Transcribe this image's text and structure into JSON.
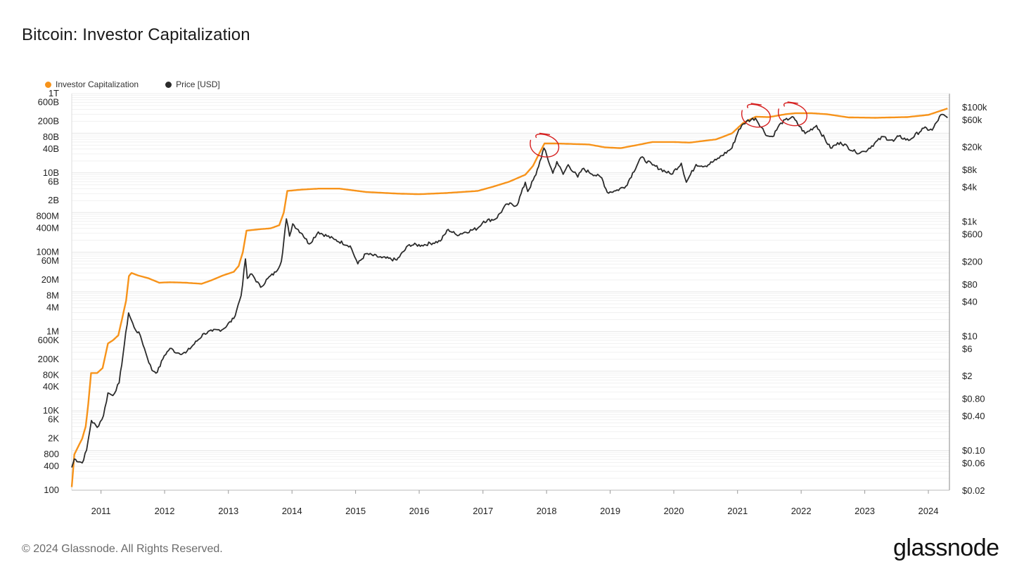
{
  "page": {
    "title": "Bitcoin: Investor Capitalization",
    "copyright": "© 2024 Glassnode. All Rights Reserved.",
    "logo": "glassnode"
  },
  "legend": [
    {
      "label": "Investor Capitalization",
      "color": "#f7931a"
    },
    {
      "label": "Price [USD]",
      "color": "#2b2b2b"
    }
  ],
  "chart_data": {
    "type": "line",
    "title": "Bitcoin: Investor Capitalization",
    "x_ticks": [
      "2011",
      "2012",
      "2013",
      "2014",
      "2015",
      "2016",
      "2017",
      "2018",
      "2019",
      "2020",
      "2021",
      "2022",
      "2023",
      "2024"
    ],
    "xlim": [
      "2010-07-17",
      "2024-05-01"
    ],
    "left_axis": {
      "scale": "log",
      "ylim": [
        100,
        1000000000000
      ],
      "ticks": [
        {
          "label": "1T",
          "value": 1000000000000.0
        },
        {
          "label": "600B",
          "value": 600000000000.0
        },
        {
          "label": "200B",
          "value": 200000000000.0
        },
        {
          "label": "80B",
          "value": 80000000000.0
        },
        {
          "label": "40B",
          "value": 40000000000.0
        },
        {
          "label": "10B",
          "value": 10000000000.0
        },
        {
          "label": "6B",
          "value": 6000000000.0
        },
        {
          "label": "2B",
          "value": 2000000000.0
        },
        {
          "label": "800M",
          "value": 800000000.0
        },
        {
          "label": "400M",
          "value": 400000000.0
        },
        {
          "label": "100M",
          "value": 100000000.0
        },
        {
          "label": "60M",
          "value": 60000000.0
        },
        {
          "label": "20M",
          "value": 20000000.0
        },
        {
          "label": "8M",
          "value": 8000000.0
        },
        {
          "label": "4M",
          "value": 4000000.0
        },
        {
          "label": "1M",
          "value": 1000000.0
        },
        {
          "label": "600K",
          "value": 600000.0
        },
        {
          "label": "200K",
          "value": 200000.0
        },
        {
          "label": "80K",
          "value": 80000.0
        },
        {
          "label": "40K",
          "value": 40000.0
        },
        {
          "label": "10K",
          "value": 10000.0
        },
        {
          "label": "6K",
          "value": 6000.0
        },
        {
          "label": "2K",
          "value": 2000.0
        },
        {
          "label": "800",
          "value": 800
        },
        {
          "label": "400",
          "value": 400
        },
        {
          "label": "100",
          "value": 100
        }
      ]
    },
    "right_axis": {
      "scale": "log",
      "ylim": [
        0.02,
        170000
      ],
      "ticks": [
        {
          "label": "$100k",
          "value": 100000
        },
        {
          "label": "$60k",
          "value": 60000
        },
        {
          "label": "$20k",
          "value": 20000
        },
        {
          "label": "$8k",
          "value": 8000
        },
        {
          "label": "$4k",
          "value": 4000
        },
        {
          "label": "$1k",
          "value": 1000
        },
        {
          "label": "$600",
          "value": 600
        },
        {
          "label": "$200",
          "value": 200
        },
        {
          "label": "$80",
          "value": 80
        },
        {
          "label": "$40",
          "value": 40
        },
        {
          "label": "$10",
          "value": 10
        },
        {
          "label": "$6",
          "value": 6
        },
        {
          "label": "$2",
          "value": 2
        },
        {
          "label": "$0.80",
          "value": 0.8
        },
        {
          "label": "$0.40",
          "value": 0.4
        },
        {
          "label": "$0.10",
          "value": 0.1
        },
        {
          "label": "$0.06",
          "value": 0.06
        },
        {
          "label": "$0.02",
          "value": 0.02
        }
      ]
    },
    "grid": true,
    "legend_position": "top-left",
    "series": [
      {
        "name": "Investor Capitalization",
        "axis": "left",
        "color": "#f7931a",
        "points": [
          [
            "2010-07-17",
            120
          ],
          [
            "2010-08-01",
            800
          ],
          [
            "2010-09-15",
            2000
          ],
          [
            "2010-10-05",
            4000
          ],
          [
            "2010-10-20",
            15000
          ],
          [
            "2010-11-05",
            90000
          ],
          [
            "2010-12-10",
            90000
          ],
          [
            "2011-01-10",
            120000
          ],
          [
            "2011-02-10",
            500000
          ],
          [
            "2011-03-10",
            600000
          ],
          [
            "2011-04-10",
            800000
          ],
          [
            "2011-05-01",
            2000000
          ],
          [
            "2011-05-25",
            6000000
          ],
          [
            "2011-06-10",
            25000000
          ],
          [
            "2011-06-25",
            30000000
          ],
          [
            "2011-08-01",
            26000000
          ],
          [
            "2011-10-01",
            22000000
          ],
          [
            "2011-12-01",
            17000000
          ],
          [
            "2012-02-01",
            17500000
          ],
          [
            "2012-05-01",
            17000000
          ],
          [
            "2012-08-01",
            16000000
          ],
          [
            "2012-10-01",
            20000000
          ],
          [
            "2012-12-01",
            26000000
          ],
          [
            "2013-02-01",
            32000000
          ],
          [
            "2013-03-01",
            45000000
          ],
          [
            "2013-03-25",
            100000000
          ],
          [
            "2013-04-15",
            350000000
          ],
          [
            "2013-07-01",
            380000000
          ],
          [
            "2013-09-01",
            400000000
          ],
          [
            "2013-10-20",
            480000000
          ],
          [
            "2013-11-15",
            1000000000
          ],
          [
            "2013-12-05",
            3500000000
          ],
          [
            "2014-03-01",
            3800000000
          ],
          [
            "2014-06-01",
            4000000000
          ],
          [
            "2014-10-01",
            4000000000
          ],
          [
            "2015-03-01",
            3300000000
          ],
          [
            "2015-09-01",
            3000000000
          ],
          [
            "2016-01-01",
            2900000000
          ],
          [
            "2016-06-01",
            3100000000
          ],
          [
            "2016-12-01",
            3500000000
          ],
          [
            "2017-03-01",
            4500000000
          ],
          [
            "2017-06-01",
            6000000000
          ],
          [
            "2017-09-01",
            9000000000
          ],
          [
            "2017-10-15",
            15000000000
          ],
          [
            "2017-11-15",
            28000000000
          ],
          [
            "2017-12-20",
            55000000000
          ],
          [
            "2018-03-01",
            55000000000
          ],
          [
            "2018-09-01",
            52000000000
          ],
          [
            "2018-12-01",
            44000000000
          ],
          [
            "2019-03-01",
            42000000000
          ],
          [
            "2019-06-01",
            50000000000
          ],
          [
            "2019-09-01",
            60000000000
          ],
          [
            "2020-01-01",
            60000000000
          ],
          [
            "2020-04-01",
            58000000000
          ],
          [
            "2020-09-01",
            70000000000
          ],
          [
            "2020-12-01",
            100000000000
          ],
          [
            "2021-02-01",
            180000000000
          ],
          [
            "2021-04-15",
            260000000000
          ],
          [
            "2021-07-01",
            255000000000
          ],
          [
            "2021-10-01",
            300000000000
          ],
          [
            "2021-12-01",
            320000000000
          ],
          [
            "2022-03-01",
            320000000000
          ],
          [
            "2022-06-01",
            300000000000
          ],
          [
            "2022-10-01",
            250000000000
          ],
          [
            "2023-03-01",
            245000000000
          ],
          [
            "2023-09-01",
            255000000000
          ],
          [
            "2024-01-01",
            290000000000
          ],
          [
            "2024-04-20",
            420000000000
          ]
        ]
      },
      {
        "name": "Price [USD]",
        "axis": "right",
        "color": "#2b2b2b",
        "points": [
          [
            "2010-07-17",
            0.05
          ],
          [
            "2010-08-01",
            0.07
          ],
          [
            "2010-09-15",
            0.06
          ],
          [
            "2010-10-10",
            0.1
          ],
          [
            "2010-11-07",
            0.33
          ],
          [
            "2010-12-10",
            0.25
          ],
          [
            "2011-01-15",
            0.4
          ],
          [
            "2011-02-10",
            1.0
          ],
          [
            "2011-03-10",
            0.9
          ],
          [
            "2011-04-15",
            1.5
          ],
          [
            "2011-05-15",
            7
          ],
          [
            "2011-06-08",
            25
          ],
          [
            "2011-07-10",
            14
          ],
          [
            "2011-08-15",
            10
          ],
          [
            "2011-09-15",
            5
          ],
          [
            "2011-10-20",
            2.5
          ],
          [
            "2011-11-20",
            2.3
          ],
          [
            "2011-12-30",
            4.5
          ],
          [
            "2012-02-01",
            6
          ],
          [
            "2012-03-15",
            5
          ],
          [
            "2012-05-01",
            5
          ],
          [
            "2012-08-15",
            11
          ],
          [
            "2012-10-01",
            12
          ],
          [
            "2012-12-01",
            13
          ],
          [
            "2013-02-01",
            20
          ],
          [
            "2013-03-15",
            50
          ],
          [
            "2013-04-09",
            220
          ],
          [
            "2013-04-20",
            100
          ],
          [
            "2013-05-15",
            120
          ],
          [
            "2013-07-05",
            70
          ],
          [
            "2013-08-15",
            100
          ],
          [
            "2013-10-01",
            130
          ],
          [
            "2013-11-01",
            200
          ],
          [
            "2013-11-30",
            1100
          ],
          [
            "2013-12-18",
            550
          ],
          [
            "2014-01-05",
            900
          ],
          [
            "2014-03-01",
            600
          ],
          [
            "2014-04-10",
            400
          ],
          [
            "2014-06-01",
            650
          ],
          [
            "2014-09-01",
            480
          ],
          [
            "2014-12-01",
            370
          ],
          [
            "2015-01-14",
            180
          ],
          [
            "2015-03-01",
            270
          ],
          [
            "2015-06-01",
            230
          ],
          [
            "2015-08-25",
            210
          ],
          [
            "2015-11-05",
            390
          ],
          [
            "2016-01-15",
            380
          ],
          [
            "2016-05-01",
            450
          ],
          [
            "2016-06-16",
            720
          ],
          [
            "2016-08-01",
            580
          ],
          [
            "2016-12-01",
            750
          ],
          [
            "2017-01-05",
            1000
          ],
          [
            "2017-03-15",
            1100
          ],
          [
            "2017-05-20",
            2000
          ],
          [
            "2017-07-15",
            1900
          ],
          [
            "2017-09-01",
            4800
          ],
          [
            "2017-09-15",
            3300
          ],
          [
            "2017-11-01",
            6500
          ],
          [
            "2017-12-17",
            19000
          ],
          [
            "2018-02-06",
            6900
          ],
          [
            "2018-03-01",
            11000
          ],
          [
            "2018-04-06",
            6600
          ],
          [
            "2018-05-05",
            9700
          ],
          [
            "2018-06-29",
            5900
          ],
          [
            "2018-07-25",
            8200
          ],
          [
            "2018-11-14",
            5700
          ],
          [
            "2018-12-15",
            3200
          ],
          [
            "2019-02-01",
            3400
          ],
          [
            "2019-04-01",
            4100
          ],
          [
            "2019-06-26",
            13000
          ],
          [
            "2019-09-01",
            9600
          ],
          [
            "2019-12-17",
            6600
          ],
          [
            "2020-02-13",
            10300
          ],
          [
            "2020-03-13",
            4800
          ],
          [
            "2020-05-08",
            9800
          ],
          [
            "2020-07-01",
            9200
          ],
          [
            "2020-09-01",
            11800
          ],
          [
            "2020-11-30",
            19000
          ],
          [
            "2021-01-08",
            40000
          ],
          [
            "2021-02-21",
            56000
          ],
          [
            "2021-04-14",
            63000
          ],
          [
            "2021-06-20",
            31000
          ],
          [
            "2021-07-20",
            30000
          ],
          [
            "2021-09-07",
            52000
          ],
          [
            "2021-11-10",
            67000
          ],
          [
            "2022-01-24",
            34000
          ],
          [
            "2022-03-30",
            47000
          ],
          [
            "2022-06-18",
            19000
          ],
          [
            "2022-08-15",
            24000
          ],
          [
            "2022-11-10",
            16000
          ],
          [
            "2023-01-01",
            16500
          ],
          [
            "2023-04-15",
            30000
          ],
          [
            "2023-06-15",
            25000
          ],
          [
            "2023-07-15",
            30500
          ],
          [
            "2023-09-10",
            25800
          ],
          [
            "2023-12-05",
            42000
          ],
          [
            "2024-01-23",
            39000
          ],
          [
            "2024-03-14",
            73000
          ],
          [
            "2024-04-20",
            64000
          ]
        ]
      }
    ],
    "annotations": [
      {
        "type": "hand-drawn circle",
        "color": "#d62020",
        "date": "2017-12-17"
      },
      {
        "type": "hand-drawn circle",
        "color": "#d62020",
        "date": "2021-04-14"
      },
      {
        "type": "hand-drawn circle",
        "color": "#d62020",
        "date": "2021-11-10"
      }
    ]
  }
}
